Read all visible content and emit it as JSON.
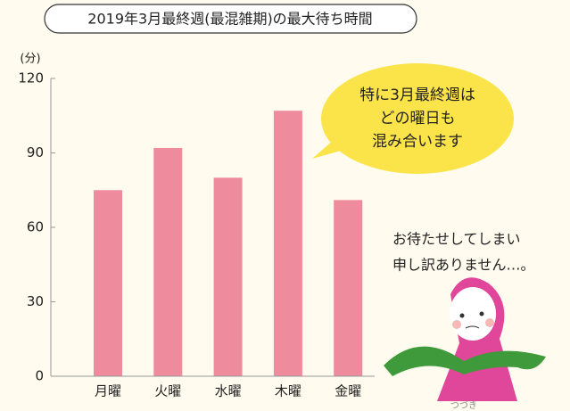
{
  "chart_data": {
    "type": "bar",
    "title": "2019年3月最終週(最混雑期)の最大待ち時間",
    "y_label": "(分)",
    "categories": [
      "月曜",
      "火曜",
      "水曜",
      "木曜",
      "金曜"
    ],
    "values": [
      75,
      92,
      80,
      107,
      71
    ],
    "color": "#ee8b9d",
    "ylim": [
      0,
      120
    ],
    "yticks": [
      0,
      30,
      60,
      90,
      120
    ],
    "bubble_text": [
      "特に3月最終週は",
      "どの曜日も",
      "混み合います"
    ],
    "apology_text": [
      "お待たせしてしまい",
      "申し訳ありません…。"
    ],
    "character_name": "つづき"
  }
}
